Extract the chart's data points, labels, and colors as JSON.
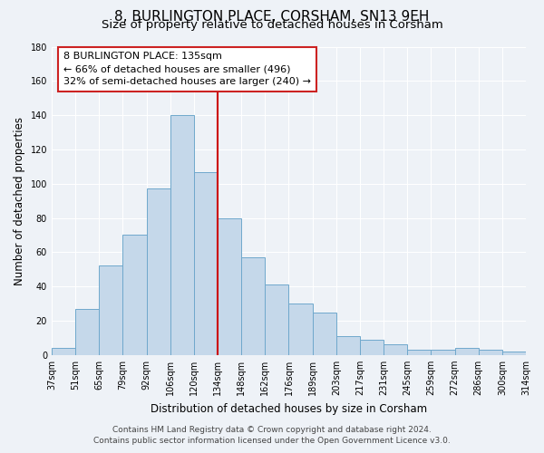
{
  "title": "8, BURLINGTON PLACE, CORSHAM, SN13 9EH",
  "subtitle": "Size of property relative to detached houses in Corsham",
  "xlabel": "Distribution of detached houses by size in Corsham",
  "ylabel": "Number of detached properties",
  "bar_labels": [
    "37sqm",
    "51sqm",
    "65sqm",
    "79sqm",
    "92sqm",
    "106sqm",
    "120sqm",
    "134sqm",
    "148sqm",
    "162sqm",
    "176sqm",
    "189sqm",
    "203sqm",
    "217sqm",
    "231sqm",
    "245sqm",
    "259sqm",
    "272sqm",
    "286sqm",
    "300sqm",
    "314sqm"
  ],
  "bar_values": [
    4,
    27,
    52,
    70,
    97,
    140,
    107,
    80,
    57,
    41,
    30,
    25,
    11,
    9,
    6,
    3,
    3,
    4,
    3,
    2
  ],
  "bar_color": "#c5d8ea",
  "bar_edge_color": "#6fa8cc",
  "vline_color": "#cc0000",
  "ylim": [
    0,
    180
  ],
  "yticks": [
    0,
    20,
    40,
    60,
    80,
    100,
    120,
    140,
    160,
    180
  ],
  "annotation_title": "8 BURLINGTON PLACE: 135sqm",
  "annotation_line1": "← 66% of detached houses are smaller (496)",
  "annotation_line2": "32% of semi-detached houses are larger (240) →",
  "footer1": "Contains HM Land Registry data © Crown copyright and database right 2024.",
  "footer2": "Contains public sector information licensed under the Open Government Licence v3.0.",
  "bg_color": "#eef2f7",
  "plot_bg_color": "#eef2f7",
  "title_fontsize": 11,
  "subtitle_fontsize": 9.5,
  "axis_label_fontsize": 8.5,
  "tick_fontsize": 7,
  "annotation_fontsize": 8,
  "footer_fontsize": 6.5
}
